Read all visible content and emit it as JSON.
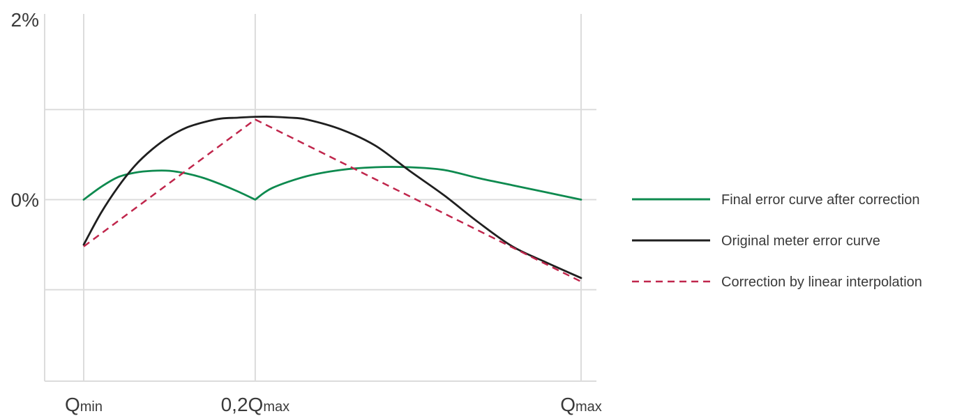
{
  "chart_data": {
    "type": "line",
    "title": "",
    "xlabel": "",
    "ylabel": "",
    "x_categories": [
      {
        "base": "Q",
        "sub": "min"
      },
      {
        "base": "0,2Q",
        "sub": "max"
      },
      {
        "base": "Q",
        "sub": "max"
      }
    ],
    "x_positions": [
      0,
      1,
      2.9
    ],
    "xlim": [
      0,
      2.9
    ],
    "y_ticks": [
      {
        "value": 2,
        "label": "2%"
      },
      {
        "value": 1,
        "label": ""
      },
      {
        "value": 0,
        "label": "0%"
      },
      {
        "value": -1,
        "label": ""
      },
      {
        "value": -2,
        "label": ""
      }
    ],
    "ylim": [
      -2,
      2
    ],
    "grid": true,
    "legend_position": "right",
    "series": [
      {
        "name": "Final error curve after correction",
        "color": "#0e8a4f",
        "dash": "solid",
        "x": [
          0,
          0.1,
          0.2,
          0.3,
          0.4,
          0.5,
          0.6,
          0.7,
          0.8,
          0.9,
          1.0,
          1.1,
          1.3,
          1.5,
          1.7,
          1.9,
          2.1,
          2.3,
          2.5,
          2.7,
          2.9
        ],
        "y": [
          0,
          0.14,
          0.25,
          0.3,
          0.32,
          0.32,
          0.29,
          0.24,
          0.17,
          0.09,
          0,
          0.13,
          0.26,
          0.33,
          0.36,
          0.36,
          0.33,
          0.24,
          0.16,
          0.08,
          0
        ]
      },
      {
        "name": "Original meter error curve",
        "color": "#1f1f1f",
        "dash": "solid",
        "x": [
          0,
          0.1,
          0.2,
          0.3,
          0.4,
          0.5,
          0.6,
          0.7,
          0.8,
          0.9,
          1.0,
          1.1,
          1.2,
          1.3,
          1.5,
          1.7,
          1.9,
          2.1,
          2.3,
          2.5,
          2.7,
          2.9
        ],
        "y": [
          -0.5,
          -0.15,
          0.14,
          0.38,
          0.56,
          0.7,
          0.8,
          0.86,
          0.9,
          0.91,
          0.92,
          0.92,
          0.91,
          0.89,
          0.78,
          0.6,
          0.32,
          0.05,
          -0.25,
          -0.52,
          -0.7,
          -0.87
        ]
      },
      {
        "name": "Correction by linear interpolation",
        "color": "#c0264c",
        "dash": "dashed",
        "x": [
          0,
          1,
          2.9
        ],
        "y": [
          -0.52,
          0.89,
          -0.91
        ]
      }
    ]
  }
}
